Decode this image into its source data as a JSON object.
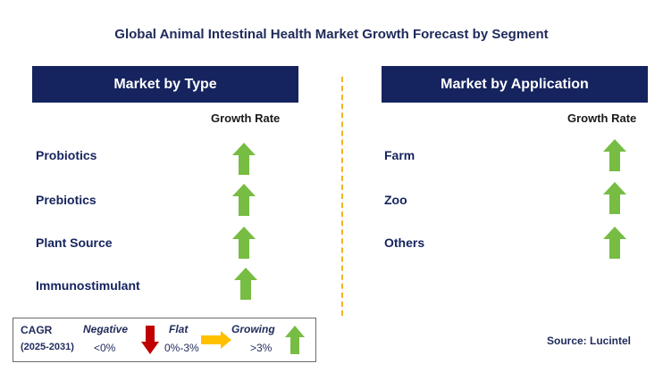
{
  "title": "Global Animal Intestinal Health Market Growth Forecast by Segment",
  "left_panel": {
    "header": "Market by Type",
    "growth_label": "Growth Rate",
    "rows": [
      {
        "label": "Probiotics",
        "trend": "growing"
      },
      {
        "label": "Prebiotics",
        "trend": "growing"
      },
      {
        "label": "Plant Source",
        "trend": "growing"
      },
      {
        "label": "Immunostimulant",
        "trend": "growing"
      }
    ]
  },
  "right_panel": {
    "header": "Market by Application",
    "growth_label": "Growth Rate",
    "rows": [
      {
        "label": "Farm",
        "trend": "growing"
      },
      {
        "label": "Zoo",
        "trend": "growing"
      },
      {
        "label": "Others",
        "trend": "growing"
      }
    ]
  },
  "legend": {
    "cagr": "CAGR",
    "years": "(2025-2031)",
    "negative": {
      "label": "Negative",
      "range": "<0%",
      "icon": "red-down-arrow-icon"
    },
    "flat": {
      "label": "Flat",
      "range": "0%-3%",
      "icon": "orange-right-arrow-icon"
    },
    "growing": {
      "label": "Growing",
      "range": ">3%",
      "icon": "green-up-arrow-icon"
    }
  },
  "source": "Source: Lucintel",
  "colors": {
    "header_bg": "#15235e",
    "divider": "#f0b323",
    "growing": "#77bc43",
    "negative": "#c00000",
    "flat": "#ffc000"
  }
}
